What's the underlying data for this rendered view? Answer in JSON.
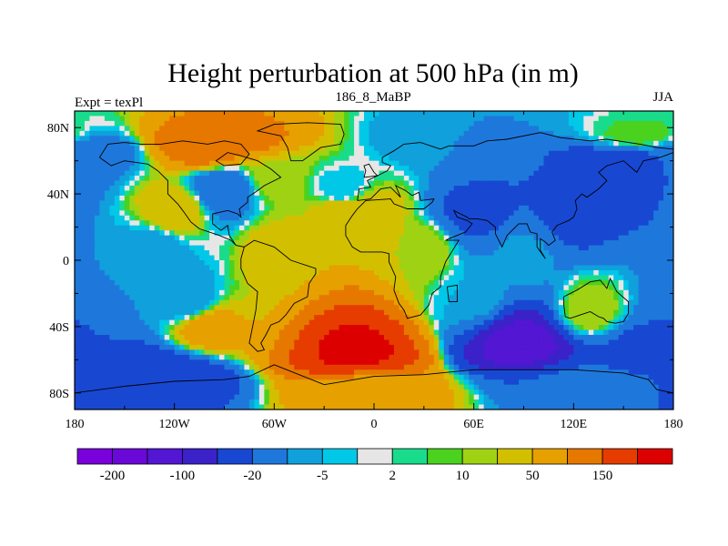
{
  "chart_data": {
    "type": "heatmap",
    "title": "Height perturbation at 500 hPa (in m)",
    "left_string": "Expt = texPl",
    "center_string": "186_8_MaBP",
    "right_string": "JJA",
    "x_ticks": [
      {
        "value": -180,
        "label": "180"
      },
      {
        "value": -120,
        "label": "120W"
      },
      {
        "value": -60,
        "label": "60W"
      },
      {
        "value": 0,
        "label": "0"
      },
      {
        "value": 60,
        "label": "60E"
      },
      {
        "value": 120,
        "label": "120E"
      },
      {
        "value": 180,
        "label": "180"
      }
    ],
    "y_ticks": [
      {
        "value": 80,
        "label": "80N"
      },
      {
        "value": 40,
        "label": "40N"
      },
      {
        "value": 0,
        "label": "0"
      },
      {
        "value": -40,
        "label": "40S"
      },
      {
        "value": -80,
        "label": "80S"
      }
    ],
    "xlim": [
      -180,
      180
    ],
    "ylim": [
      -90,
      90
    ],
    "colorbar": {
      "colors": [
        "#7a00dc",
        "#6a08d8",
        "#5316d2",
        "#3a22c8",
        "#1848d2",
        "#1e78dc",
        "#10a0dc",
        "#00c8e6",
        "#e6e6e6",
        "#18dc8c",
        "#4ad21e",
        "#a0d214",
        "#d2c000",
        "#e6a000",
        "#e67800",
        "#e63c00",
        "#dc0000"
      ],
      "labeled_boundaries": [
        {
          "index": 1,
          "label": "-200"
        },
        {
          "index": 3,
          "label": "-100"
        },
        {
          "index": 5,
          "label": "-20"
        },
        {
          "index": 7,
          "label": "-5"
        },
        {
          "index": 9,
          "label": "2"
        },
        {
          "index": 11,
          "label": "10"
        },
        {
          "index": 13,
          "label": "50"
        },
        {
          "index": 15,
          "label": "150"
        }
      ]
    },
    "anomaly_centers": [
      {
        "lon": -170,
        "lat": 65,
        "value": -30
      },
      {
        "lon": -100,
        "lat": 70,
        "value": 80
      },
      {
        "lon": -60,
        "lat": 50,
        "value": 10
      },
      {
        "lon": -90,
        "lat": 43,
        "value": -40
      },
      {
        "lon": -20,
        "lat": 42,
        "value": -10
      },
      {
        "lon": -20,
        "lat": 30,
        "value": 20
      },
      {
        "lon": 50,
        "lat": 72,
        "value": -20
      },
      {
        "lon": 60,
        "lat": 30,
        "value": -60
      },
      {
        "lon": 120,
        "lat": 28,
        "value": -60
      },
      {
        "lon": 150,
        "lat": 58,
        "value": -90
      },
      {
        "lon": 160,
        "lat": 75,
        "value": 5
      },
      {
        "lon": 0,
        "lat": 30,
        "value": 15
      },
      {
        "lon": -120,
        "lat": 30,
        "value": 20
      },
      {
        "lon": -130,
        "lat": 5,
        "value": -20
      },
      {
        "lon": 90,
        "lat": 0,
        "value": -15
      },
      {
        "lon": 30,
        "lat": 5,
        "value": 10
      },
      {
        "lon": -60,
        "lat": 5,
        "value": 15
      },
      {
        "lon": -110,
        "lat": -25,
        "value": -20
      },
      {
        "lon": 130,
        "lat": -30,
        "value": 10
      },
      {
        "lon": 60,
        "lat": -20,
        "value": -10
      },
      {
        "lon": -100,
        "lat": -40,
        "value": 30
      },
      {
        "lon": -10,
        "lat": -55,
        "value": 160
      },
      {
        "lon": 90,
        "lat": -50,
        "value": -170
      },
      {
        "lon": 160,
        "lat": -55,
        "value": -60
      },
      {
        "lon": -130,
        "lat": -70,
        "value": -90
      },
      {
        "lon": 130,
        "lat": -75,
        "value": -40
      },
      {
        "lon": 0,
        "lat": -80,
        "value": 30
      }
    ],
    "coastlines": [
      [
        [
          -165,
          62
        ],
        [
          -160,
          70
        ],
        [
          -150,
          71
        ],
        [
          -140,
          70
        ],
        [
          -128,
          70
        ],
        [
          -115,
          72
        ],
        [
          -100,
          70
        ],
        [
          -90,
          72
        ],
        [
          -80,
          70
        ],
        [
          -75,
          64
        ],
        [
          -80,
          58
        ],
        [
          -90,
          57
        ],
        [
          -95,
          60
        ],
        [
          -88,
          65
        ],
        [
          -80,
          63
        ],
        [
          -70,
          60
        ],
        [
          -62,
          55
        ],
        [
          -56,
          50
        ],
        [
          -66,
          45
        ],
        [
          -70,
          42
        ],
        [
          -76,
          38
        ],
        [
          -76,
          35
        ],
        [
          -81,
          31
        ],
        [
          -80,
          26
        ],
        [
          -82,
          28
        ],
        [
          -88,
          30
        ],
        [
          -97,
          28
        ],
        [
          -97,
          22
        ],
        [
          -92,
          18
        ],
        [
          -88,
          21
        ],
        [
          -87,
          15
        ],
        [
          -83,
          9
        ],
        [
          -78,
          8
        ],
        [
          -80,
          1
        ],
        [
          -80,
          -5
        ],
        [
          -76,
          -14
        ],
        [
          -70,
          -19
        ],
        [
          -71,
          -30
        ],
        [
          -73,
          -40
        ],
        [
          -75,
          -50
        ],
        [
          -70,
          -55
        ],
        [
          -66,
          -54
        ],
        [
          -68,
          -50
        ],
        [
          -65,
          -45
        ],
        [
          -62,
          -39
        ],
        [
          -57,
          -37
        ],
        [
          -53,
          -33
        ],
        [
          -48,
          -26
        ],
        [
          -40,
          -22
        ],
        [
          -39,
          -14
        ],
        [
          -35,
          -8
        ],
        [
          -35,
          -5
        ],
        [
          -50,
          0
        ],
        [
          -60,
          8
        ],
        [
          -72,
          12
        ],
        [
          -78,
          8
        ],
        [
          -83,
          9
        ],
        [
          -86,
          12
        ],
        [
          -93,
          15
        ],
        [
          -105,
          19
        ],
        [
          -110,
          23
        ],
        [
          -115,
          30
        ],
        [
          -118,
          34
        ],
        [
          -124,
          40
        ],
        [
          -124,
          48
        ],
        [
          -130,
          54
        ],
        [
          -136,
          58
        ],
        [
          -150,
          60
        ],
        [
          -158,
          57
        ],
        [
          -165,
          62
        ]
      ],
      [
        [
          -50,
          60
        ],
        [
          -43,
          60
        ],
        [
          -32,
          68
        ],
        [
          -20,
          70
        ],
        [
          -18,
          76
        ],
        [
          -20,
          82
        ],
        [
          -40,
          83
        ],
        [
          -60,
          82
        ],
        [
          -70,
          78
        ],
        [
          -56,
          75
        ],
        [
          -52,
          68
        ],
        [
          -50,
          60
        ]
      ],
      [
        [
          -10,
          36
        ],
        [
          -9,
          43
        ],
        [
          -2,
          44
        ],
        [
          -4,
          48
        ],
        [
          2,
          51
        ],
        [
          8,
          54
        ],
        [
          10,
          57
        ],
        [
          5,
          59
        ],
        [
          5,
          62
        ],
        [
          12,
          66
        ],
        [
          18,
          70
        ],
        [
          28,
          71
        ],
        [
          40,
          67
        ],
        [
          45,
          69
        ],
        [
          60,
          69
        ],
        [
          68,
          72
        ],
        [
          80,
          73
        ],
        [
          100,
          77
        ],
        [
          112,
          74
        ],
        [
          130,
          72
        ],
        [
          140,
          73
        ],
        [
          160,
          70
        ],
        [
          170,
          68
        ],
        [
          180,
          67
        ],
        [
          180,
          65
        ],
        [
          172,
          62
        ],
        [
          162,
          60
        ],
        [
          158,
          53
        ],
        [
          150,
          60
        ],
        [
          140,
          57
        ],
        [
          135,
          53
        ],
        [
          140,
          48
        ],
        [
          135,
          43
        ],
        [
          128,
          38
        ],
        [
          125,
          40
        ],
        [
          121,
          36
        ],
        [
          122,
          31
        ],
        [
          120,
          26
        ],
        [
          117,
          24
        ],
        [
          110,
          21
        ],
        [
          107,
          17
        ],
        [
          109,
          12
        ],
        [
          105,
          9
        ],
        [
          103,
          11
        ],
        [
          100,
          13
        ],
        [
          100,
          6
        ],
        [
          103,
          1
        ],
        [
          98,
          8
        ],
        [
          98,
          16
        ],
        [
          94,
          17
        ],
        [
          92,
          22
        ],
        [
          87,
          22
        ],
        [
          80,
          15
        ],
        [
          77,
          8
        ],
        [
          73,
          16
        ],
        [
          73,
          20
        ],
        [
          68,
          24
        ],
        [
          62,
          25
        ],
        [
          57,
          25
        ],
        [
          56,
          26
        ],
        [
          52,
          28
        ],
        [
          48,
          30
        ],
        [
          50,
          26
        ],
        [
          56,
          24
        ],
        [
          59,
          22
        ],
        [
          55,
          17
        ],
        [
          45,
          13
        ],
        [
          43,
          12
        ],
        [
          51,
          12
        ],
        [
          43,
          -1
        ],
        [
          40,
          -10
        ],
        [
          40,
          -16
        ],
        [
          35,
          -20
        ],
        [
          33,
          -27
        ],
        [
          28,
          -33
        ],
        [
          20,
          -35
        ],
        [
          18,
          -30
        ],
        [
          15,
          -26
        ],
        [
          12,
          -18
        ],
        [
          13,
          -10
        ],
        [
          9,
          -1
        ],
        [
          9,
          4
        ],
        [
          5,
          5
        ],
        [
          0,
          5
        ],
        [
          -8,
          5
        ],
        [
          -13,
          8
        ],
        [
          -17,
          15
        ],
        [
          -17,
          21
        ],
        [
          -13,
          27
        ],
        [
          -10,
          31
        ],
        [
          -5,
          36
        ],
        [
          10,
          37
        ],
        [
          12,
          34
        ],
        [
          20,
          31
        ],
        [
          30,
          31
        ],
        [
          35,
          35
        ],
        [
          36,
          37
        ],
        [
          28,
          36
        ],
        [
          27,
          41
        ],
        [
          23,
          39
        ],
        [
          19,
          42
        ],
        [
          13,
          45
        ],
        [
          16,
          38
        ],
        [
          10,
          44
        ],
        [
          4,
          43
        ],
        [
          -2,
          37
        ],
        [
          -10,
          36
        ]
      ],
      [
        [
          114,
          -22
        ],
        [
          122,
          -18
        ],
        [
          130,
          -13
        ],
        [
          136,
          -12
        ],
        [
          140,
          -17
        ],
        [
          142,
          -11
        ],
        [
          146,
          -19
        ],
        [
          153,
          -25
        ],
        [
          153,
          -32
        ],
        [
          150,
          -37
        ],
        [
          145,
          -38
        ],
        [
          140,
          -37
        ],
        [
          138,
          -35
        ],
        [
          135,
          -34
        ],
        [
          130,
          -31
        ],
        [
          124,
          -33
        ],
        [
          118,
          -35
        ],
        [
          115,
          -34
        ],
        [
          114,
          -26
        ],
        [
          114,
          -22
        ]
      ],
      [
        [
          -60,
          -63
        ],
        [
          -30,
          -75
        ],
        [
          0,
          -70
        ],
        [
          30,
          -69
        ],
        [
          60,
          -66
        ],
        [
          90,
          -66
        ],
        [
          120,
          -66
        ],
        [
          150,
          -68
        ],
        [
          165,
          -72
        ],
        [
          170,
          -78
        ],
        [
          180,
          -80
        ],
        [
          180,
          -90
        ],
        [
          -180,
          -90
        ],
        [
          -180,
          -80
        ],
        [
          -150,
          -76
        ],
        [
          -120,
          -73
        ],
        [
          -90,
          -72
        ],
        [
          -75,
          -70
        ],
        [
          -60,
          -63
        ]
      ],
      [
        [
          44,
          -16
        ],
        [
          50,
          -15
        ],
        [
          50,
          -25
        ],
        [
          45,
          -25
        ],
        [
          44,
          -16
        ]
      ],
      [
        [
          -6,
          50
        ],
        [
          2,
          51
        ],
        [
          0,
          53
        ],
        [
          -3,
          58
        ],
        [
          -6,
          57
        ],
        [
          -5,
          54
        ],
        [
          -6,
          50
        ]
      ]
    ]
  }
}
